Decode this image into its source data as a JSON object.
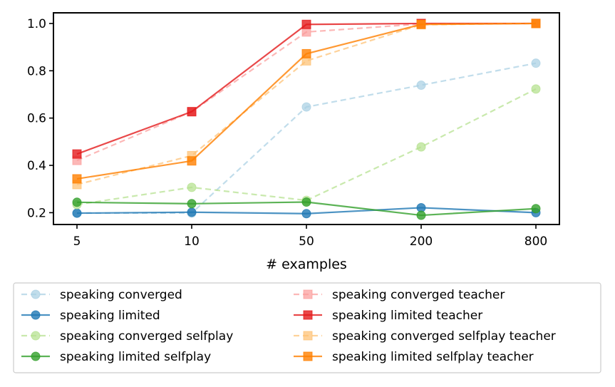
{
  "chart_data": {
    "type": "line",
    "title": "",
    "xlabel": "# examples",
    "ylabel": "",
    "categories": [
      "5",
      "10",
      "50",
      "200",
      "800"
    ],
    "ylim": [
      0.15,
      1.045
    ],
    "yticks": [
      0.2,
      0.4,
      0.6,
      0.8,
      1.0
    ],
    "ytick_labels": [
      "0.2",
      "0.4",
      "0.6",
      "0.8",
      "1.0"
    ],
    "grid": false,
    "legend_position": "below",
    "series": [
      {
        "name": "speaking converged",
        "values": [
          0.198,
          0.198,
          0.647,
          0.739,
          0.832
        ],
        "color": "#a6cee3",
        "dashed": true,
        "marker": "circle",
        "light": true
      },
      {
        "name": "speaking limited",
        "values": [
          0.198,
          0.202,
          0.196,
          0.221,
          0.2
        ],
        "color": "#1f78b4",
        "dashed": false,
        "marker": "circle",
        "light": false
      },
      {
        "name": "speaking converged selfplay",
        "values": [
          0.234,
          0.307,
          0.252,
          0.478,
          0.723
        ],
        "color": "#b2df8a",
        "dashed": true,
        "marker": "circle",
        "light": true
      },
      {
        "name": "speaking limited selfplay",
        "values": [
          0.244,
          0.238,
          0.245,
          0.189,
          0.217
        ],
        "color": "#33a02c",
        "dashed": false,
        "marker": "circle",
        "light": false
      },
      {
        "name": "speaking converged teacher",
        "values": [
          0.421,
          0.627,
          0.964,
          0.998,
          1.0
        ],
        "color": "#fb9a99",
        "dashed": true,
        "marker": "square",
        "light": true
      },
      {
        "name": "speaking limited teacher",
        "values": [
          0.448,
          0.627,
          0.996,
          1.0,
          1.0
        ],
        "color": "#e31a1c",
        "dashed": false,
        "marker": "square",
        "light": false
      },
      {
        "name": "speaking converged selfplay teacher",
        "values": [
          0.319,
          0.441,
          0.842,
          0.995,
          1.0
        ],
        "color": "#fdbf6f",
        "dashed": true,
        "marker": "square",
        "light": true
      },
      {
        "name": "speaking limited selfplay teacher",
        "values": [
          0.343,
          0.419,
          0.872,
          0.996,
          1.0
        ],
        "color": "#ff7f00",
        "dashed": false,
        "marker": "square",
        "light": false
      }
    ]
  }
}
